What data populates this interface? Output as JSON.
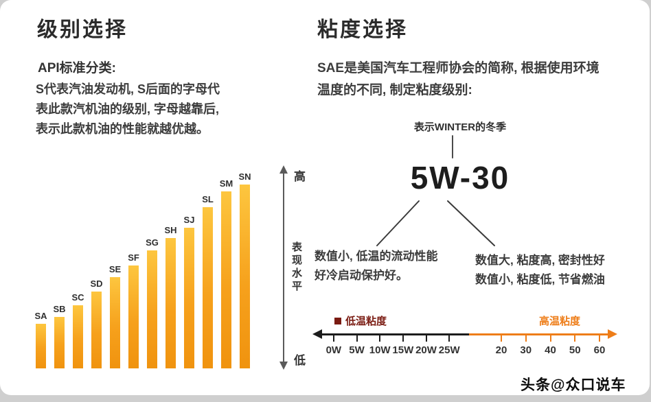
{
  "left_section": {
    "title": "级别选择",
    "subtitle": "API标准分类:",
    "description": "S代表汽油发动机, S后面的字母代表此款汽机油的级别, 字母越靠后, 表示此款机油的性能就越优越。",
    "axis": {
      "top": "高",
      "label": "表现水平",
      "bottom": "低"
    }
  },
  "chart_data": {
    "type": "bar",
    "categories": [
      "SA",
      "SB",
      "SC",
      "SD",
      "SE",
      "SF",
      "SG",
      "SH",
      "SJ",
      "SL",
      "SM",
      "SN"
    ],
    "values": [
      65,
      75,
      92,
      112,
      133,
      150,
      172,
      190,
      205,
      235,
      258,
      268
    ],
    "ylabel": "表现水平",
    "y_axis_top": "高",
    "y_axis_bottom": "低",
    "note": "Bars increase monotonically from SA (lowest performance) to SN (highest performance); values are relative heights."
  },
  "right_section": {
    "title": "粘度选择",
    "description": "SAE是美国汽车工程师协会的简称, 根据使用环境温度的不同, 制定粘度级别:",
    "winter_note": "表示WINTER的冬季",
    "grade": "5W-30",
    "low_temp_note": "数值小, 低温的流动性能好冷启动保护好。",
    "high_temp_notes": [
      "数值大, 粘度高, 密封性好",
      "数值小, 粘度低, 节省燃油"
    ],
    "temp_axis": {
      "left_label": "低温粘度",
      "right_label": "高温粘度",
      "winter_ticks": [
        "0W",
        "5W",
        "10W",
        "15W",
        "20W",
        "25W"
      ],
      "summer_ticks": [
        "20",
        "30",
        "40",
        "50",
        "60"
      ]
    }
  },
  "colors": {
    "bar_top": "#fdc63f",
    "bar_bottom": "#f0930f",
    "low_temp": "#7a1b12",
    "high_temp": "#ee7d18"
  },
  "watermark": "头条@众口说车"
}
